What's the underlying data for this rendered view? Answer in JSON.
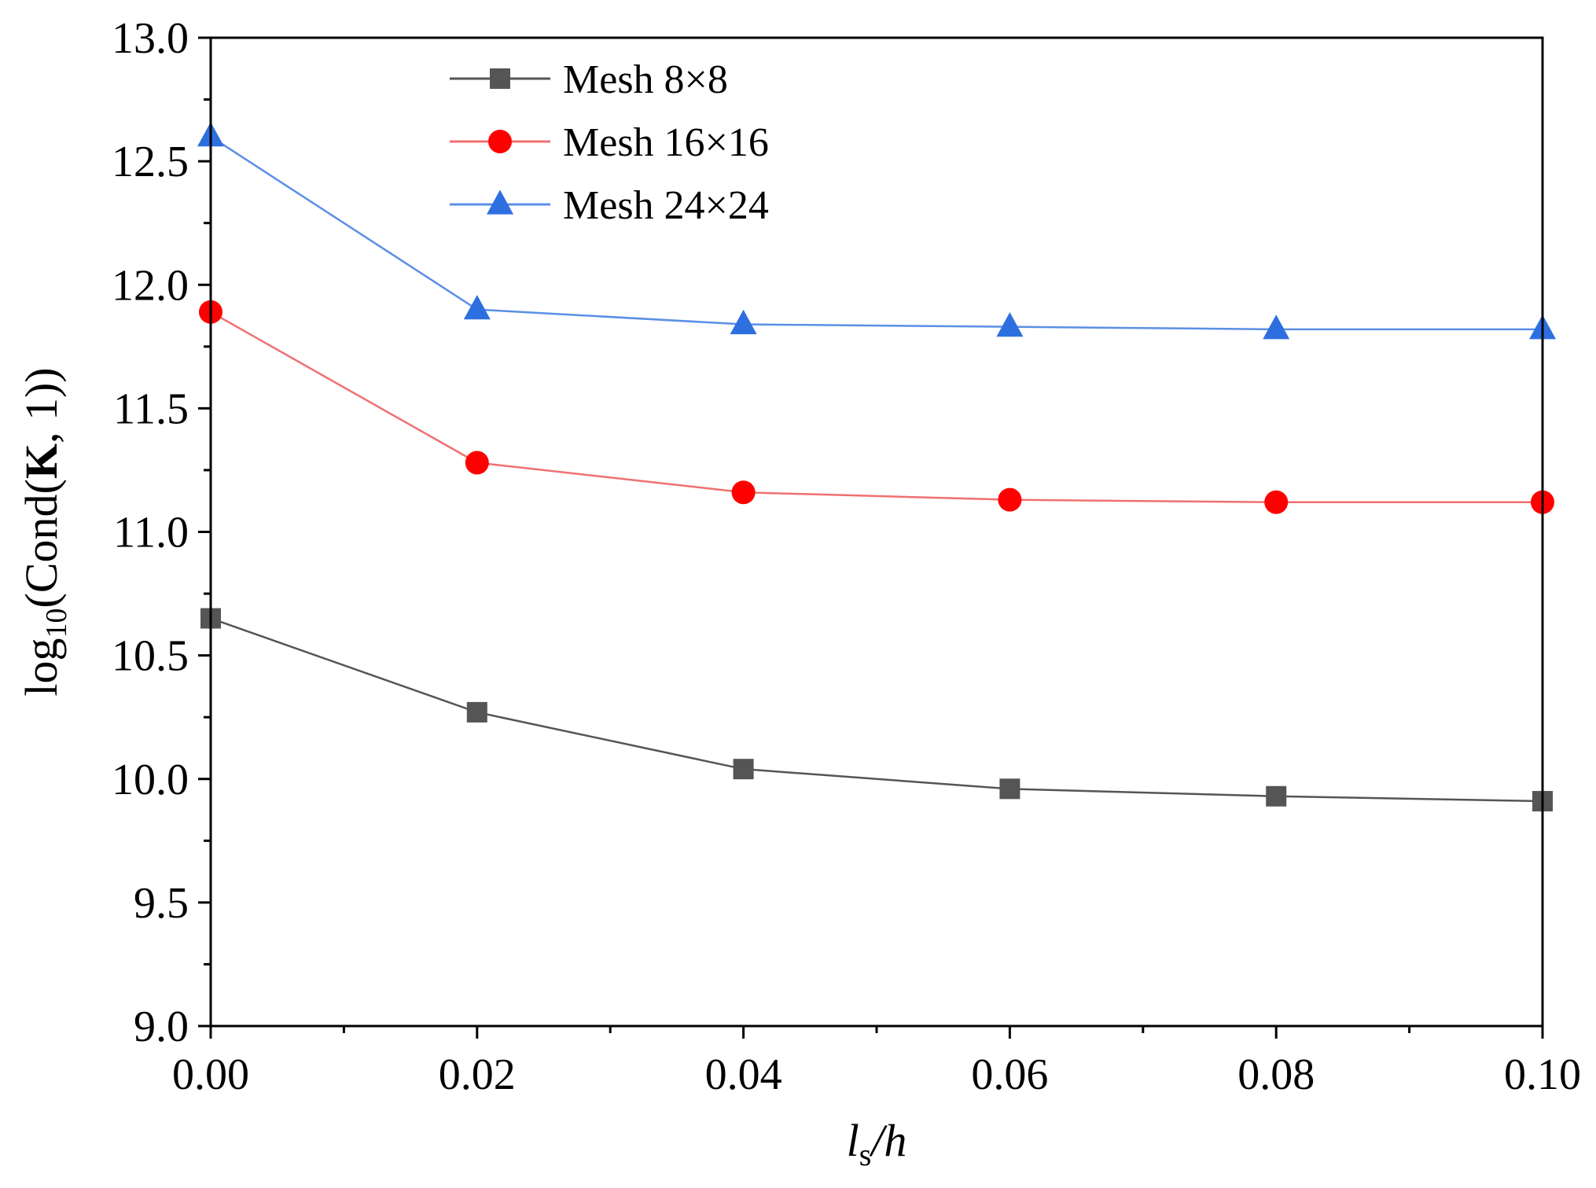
{
  "chart_data": {
    "type": "line",
    "title": "",
    "x": [
      0.0,
      0.02,
      0.04,
      0.06,
      0.08,
      0.1
    ],
    "x_tick_labels": [
      "0.00",
      "0.02",
      "0.04",
      "0.06",
      "0.08",
      "0.10"
    ],
    "y_ticks": [
      9.0,
      9.5,
      10.0,
      10.5,
      11.0,
      11.5,
      12.0,
      12.5,
      13.0
    ],
    "y_tick_labels": [
      "9.0",
      "9.5",
      "10.0",
      "10.5",
      "11.0",
      "11.5",
      "12.0",
      "12.5",
      "13.0"
    ],
    "xlim": [
      0.0,
      0.1
    ],
    "ylim": [
      9.0,
      13.0
    ],
    "xlabel": {
      "main": "l",
      "sub": "s",
      "rest": "/h"
    },
    "ylabel": {
      "pre": "log",
      "sub": "10",
      "mid": "(Cond(",
      "bold": "K",
      "post": ", 1))"
    },
    "legend_position": "top-center",
    "grid": false,
    "series": [
      {
        "name": "Mesh 8×8",
        "color": "#555555",
        "marker": "square",
        "values": [
          10.65,
          10.27,
          10.04,
          9.96,
          9.93,
          9.91
        ]
      },
      {
        "name": "Mesh 16×16",
        "color": "#ff0000",
        "line_color": "#f07070",
        "marker": "circle",
        "values": [
          11.89,
          11.28,
          11.16,
          11.13,
          11.12,
          11.12
        ]
      },
      {
        "name": "Mesh 24×24",
        "color": "#2e6fe0",
        "line_color": "#5b8fe6",
        "marker": "triangle",
        "values": [
          12.6,
          11.9,
          11.84,
          11.83,
          11.82,
          11.82
        ]
      }
    ]
  }
}
